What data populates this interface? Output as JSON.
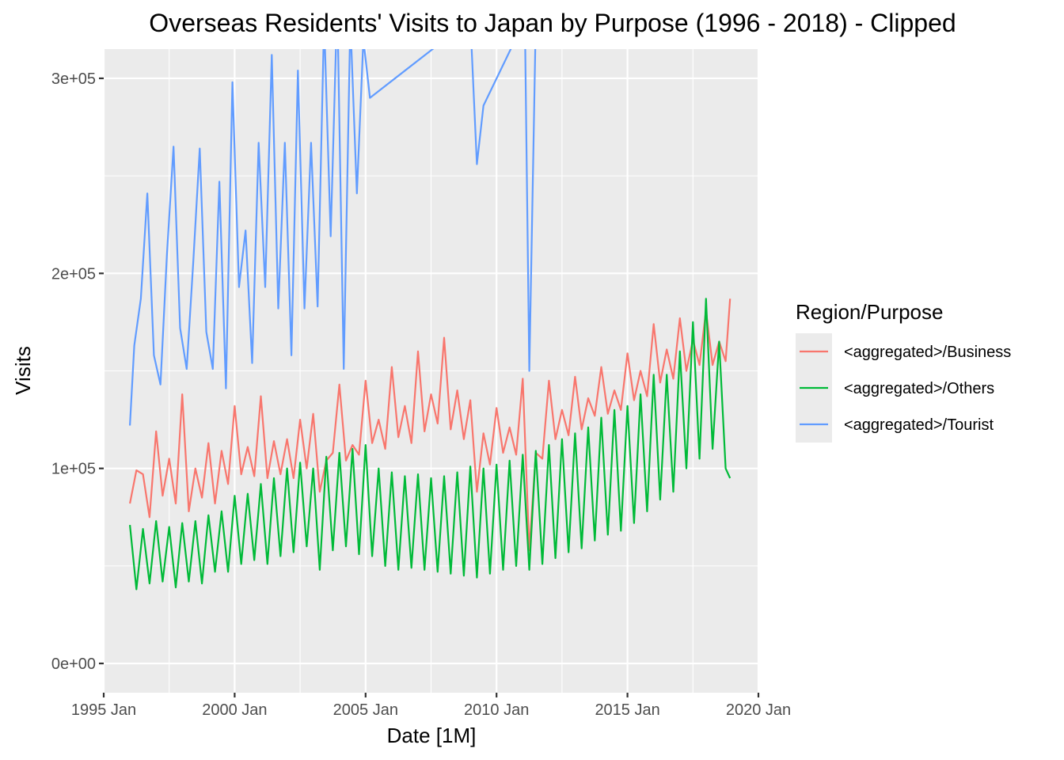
{
  "chart_data": {
    "type": "line",
    "title": "Overseas Residents' Visits to Japan by Purpose (1996 - 2018) - Clipped",
    "xlabel": "Date [1M]",
    "ylabel": "Visits",
    "xlim": [
      "1995-01",
      "2020-01"
    ],
    "ylim": [
      -15000,
      315000
    ],
    "x_ticks": [
      "1995 Jan",
      "2000 Jan",
      "2005 Jan",
      "2010 Jan",
      "2015 Jan",
      "2020 Jan"
    ],
    "y_ticks": [
      "0e+00",
      "1e+05",
      "2e+05",
      "3e+05"
    ],
    "y_tick_values": [
      0,
      100000,
      200000,
      300000
    ],
    "grid": true,
    "background": "#EBEBEB",
    "legend_title": "Region/Purpose",
    "legend_position": "right",
    "x_start": "1996-01",
    "x_end": "2018-12",
    "series": [
      {
        "name": "<aggregated>/Business",
        "color": "#F8766D",
        "x": [
          "1996-01",
          "1996-04",
          "1996-07",
          "1996-10",
          "1997-01",
          "1997-04",
          "1997-07",
          "1997-10",
          "1998-01",
          "1998-04",
          "1998-07",
          "1998-10",
          "1999-01",
          "1999-04",
          "1999-07",
          "1999-10",
          "2000-01",
          "2000-04",
          "2000-07",
          "2000-10",
          "2001-01",
          "2001-04",
          "2001-07",
          "2001-10",
          "2002-01",
          "2002-04",
          "2002-07",
          "2002-10",
          "2003-01",
          "2003-04",
          "2003-07",
          "2003-10",
          "2004-01",
          "2004-04",
          "2004-07",
          "2004-10",
          "2005-01",
          "2005-04",
          "2005-07",
          "2005-10",
          "2006-01",
          "2006-04",
          "2006-07",
          "2006-10",
          "2007-01",
          "2007-04",
          "2007-07",
          "2007-10",
          "2008-01",
          "2008-04",
          "2008-07",
          "2008-10",
          "2009-01",
          "2009-04",
          "2009-07",
          "2009-10",
          "2010-01",
          "2010-04",
          "2010-07",
          "2010-10",
          "2011-01",
          "2011-04",
          "2011-07",
          "2011-10",
          "2012-01",
          "2012-04",
          "2012-07",
          "2012-10",
          "2013-01",
          "2013-04",
          "2013-07",
          "2013-10",
          "2014-01",
          "2014-04",
          "2014-07",
          "2014-10",
          "2015-01",
          "2015-04",
          "2015-07",
          "2015-10",
          "2016-01",
          "2016-04",
          "2016-07",
          "2016-10",
          "2017-01",
          "2017-04",
          "2017-07",
          "2017-10",
          "2018-01",
          "2018-04",
          "2018-07",
          "2018-10",
          "2018-12"
        ],
        "values": [
          82000,
          99000,
          97000,
          75000,
          119000,
          86000,
          105000,
          82000,
          138000,
          78000,
          100000,
          85000,
          113000,
          82000,
          109000,
          92000,
          132000,
          97000,
          111000,
          96000,
          137000,
          95000,
          114000,
          97000,
          115000,
          95000,
          125000,
          100000,
          128000,
          88000,
          104000,
          108000,
          143000,
          104000,
          112000,
          107000,
          145000,
          113000,
          125000,
          110000,
          152000,
          116000,
          132000,
          113000,
          160000,
          119000,
          138000,
          123000,
          167000,
          120000,
          140000,
          115000,
          135000,
          88000,
          118000,
          102000,
          131000,
          108000,
          121000,
          107000,
          146000,
          58000,
          108000,
          105000,
          145000,
          115000,
          130000,
          117000,
          147000,
          120000,
          136000,
          127000,
          152000,
          128000,
          140000,
          130000,
          159000,
          135000,
          150000,
          137000,
          174000,
          144000,
          161000,
          146000,
          177000,
          150000,
          166000,
          153000,
          181000,
          153000,
          165000,
          155000,
          187000
        ]
      },
      {
        "name": "<aggregated>/Others",
        "color": "#00BA38",
        "x": [
          "1996-01",
          "1996-04",
          "1996-07",
          "1996-10",
          "1997-01",
          "1997-04",
          "1997-07",
          "1997-10",
          "1998-01",
          "1998-04",
          "1998-07",
          "1998-10",
          "1999-01",
          "1999-04",
          "1999-07",
          "1999-10",
          "2000-01",
          "2000-04",
          "2000-07",
          "2000-10",
          "2001-01",
          "2001-04",
          "2001-07",
          "2001-10",
          "2002-01",
          "2002-04",
          "2002-07",
          "2002-10",
          "2003-01",
          "2003-04",
          "2003-07",
          "2003-10",
          "2004-01",
          "2004-04",
          "2004-07",
          "2004-10",
          "2005-01",
          "2005-04",
          "2005-07",
          "2005-10",
          "2006-01",
          "2006-04",
          "2006-07",
          "2006-10",
          "2007-01",
          "2007-04",
          "2007-07",
          "2007-10",
          "2008-01",
          "2008-04",
          "2008-07",
          "2008-10",
          "2009-01",
          "2009-04",
          "2009-07",
          "2009-10",
          "2010-01",
          "2010-04",
          "2010-07",
          "2010-10",
          "2011-01",
          "2011-04",
          "2011-07",
          "2011-10",
          "2012-01",
          "2012-04",
          "2012-07",
          "2012-10",
          "2013-01",
          "2013-04",
          "2013-07",
          "2013-10",
          "2014-01",
          "2014-04",
          "2014-07",
          "2014-10",
          "2015-01",
          "2015-04",
          "2015-07",
          "2015-10",
          "2016-01",
          "2016-04",
          "2016-07",
          "2016-10",
          "2017-01",
          "2017-04",
          "2017-07",
          "2017-10",
          "2018-01",
          "2018-04",
          "2018-07",
          "2018-10",
          "2018-12"
        ],
        "values": [
          71000,
          38000,
          69000,
          41000,
          73000,
          42000,
          70000,
          39000,
          72000,
          42000,
          73000,
          41000,
          76000,
          47000,
          78000,
          47000,
          86000,
          51000,
          87000,
          53000,
          92000,
          51000,
          95000,
          55000,
          100000,
          57000,
          103000,
          60000,
          100000,
          48000,
          106000,
          58000,
          108000,
          60000,
          110000,
          56000,
          112000,
          55000,
          100000,
          50000,
          98000,
          48000,
          96000,
          49000,
          97000,
          48000,
          95000,
          47000,
          96000,
          46000,
          98000,
          45000,
          101000,
          44000,
          100000,
          46000,
          102000,
          48000,
          104000,
          50000,
          107000,
          48000,
          109000,
          51000,
          112000,
          54000,
          115000,
          57000,
          118000,
          59000,
          121000,
          63000,
          126000,
          66000,
          130000,
          68000,
          132000,
          72000,
          138000,
          78000,
          148000,
          84000,
          148000,
          88000,
          160000,
          100000,
          175000,
          105000,
          187000,
          110000,
          165000,
          100000,
          95000
        ]
      },
      {
        "name": "<aggregated>/Tourist",
        "color": "#619CFF",
        "x": [
          "1996-01",
          "1996-03",
          "1996-06",
          "1996-09",
          "1996-12",
          "1997-03",
          "1997-06",
          "1997-09",
          "1997-12",
          "1998-03",
          "1998-06",
          "1998-09",
          "1998-12",
          "1999-03",
          "1999-06",
          "1999-09",
          "1999-12",
          "2000-03",
          "2000-06",
          "2000-09",
          "2000-12",
          "2001-03",
          "2001-06",
          "2001-09",
          "2001-12",
          "2002-03",
          "2002-06",
          "2002-09",
          "2002-12",
          "2003-03",
          "2003-06",
          "2003-09",
          "2003-12",
          "2004-03",
          "2004-06",
          "2004-09",
          "2004-12",
          "2005-03",
          "2009-01",
          "2009-04",
          "2009-07",
          "2011-02",
          "2011-04",
          "2011-07",
          "2011-10"
        ],
        "values": [
          122000,
          163000,
          187000,
          241000,
          158000,
          143000,
          210000,
          265000,
          172000,
          151000,
          205000,
          264000,
          170000,
          151000,
          247000,
          141000,
          298000,
          193000,
          222000,
          154000,
          267000,
          193000,
          312000,
          182000,
          267000,
          158000,
          304000,
          182000,
          267000,
          183000,
          330000,
          219000,
          340000,
          151000,
          330000,
          241000,
          320000,
          290000,
          330000,
          256000,
          286000,
          330000,
          150000,
          330000,
          330000
        ]
      }
    ]
  }
}
